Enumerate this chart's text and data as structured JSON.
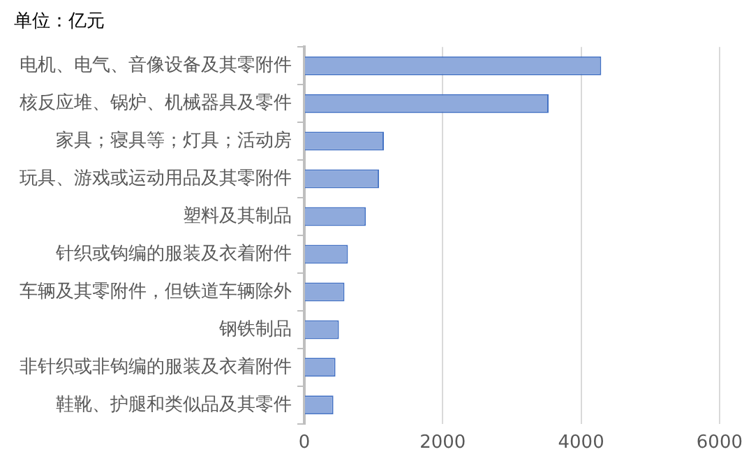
{
  "chart_data": {
    "type": "bar",
    "orientation": "horizontal",
    "title": "单位：亿元",
    "categories": [
      "电机、电气、音像设备及其零附件",
      "核反应堆、锅炉、机械器具及零件",
      "家具；寝具等；灯具；活动房",
      "玩具、游戏或运动用品及其零附件",
      "塑料及其制品",
      "针织或钩编的服装及衣着附件",
      "车辆及其零附件，但铁道车辆除外",
      "钢铁制品",
      "非针织或非钩编的服装及衣着附件",
      "鞋靴、护腿和类似品及其零件"
    ],
    "values": [
      4290,
      3530,
      1150,
      1080,
      890,
      630,
      580,
      500,
      450,
      420
    ],
    "color": "#8faadc",
    "xlim": [
      0,
      6000
    ],
    "xticks": [
      0,
      2000,
      4000,
      6000
    ],
    "grid": "x",
    "legend": false
  }
}
